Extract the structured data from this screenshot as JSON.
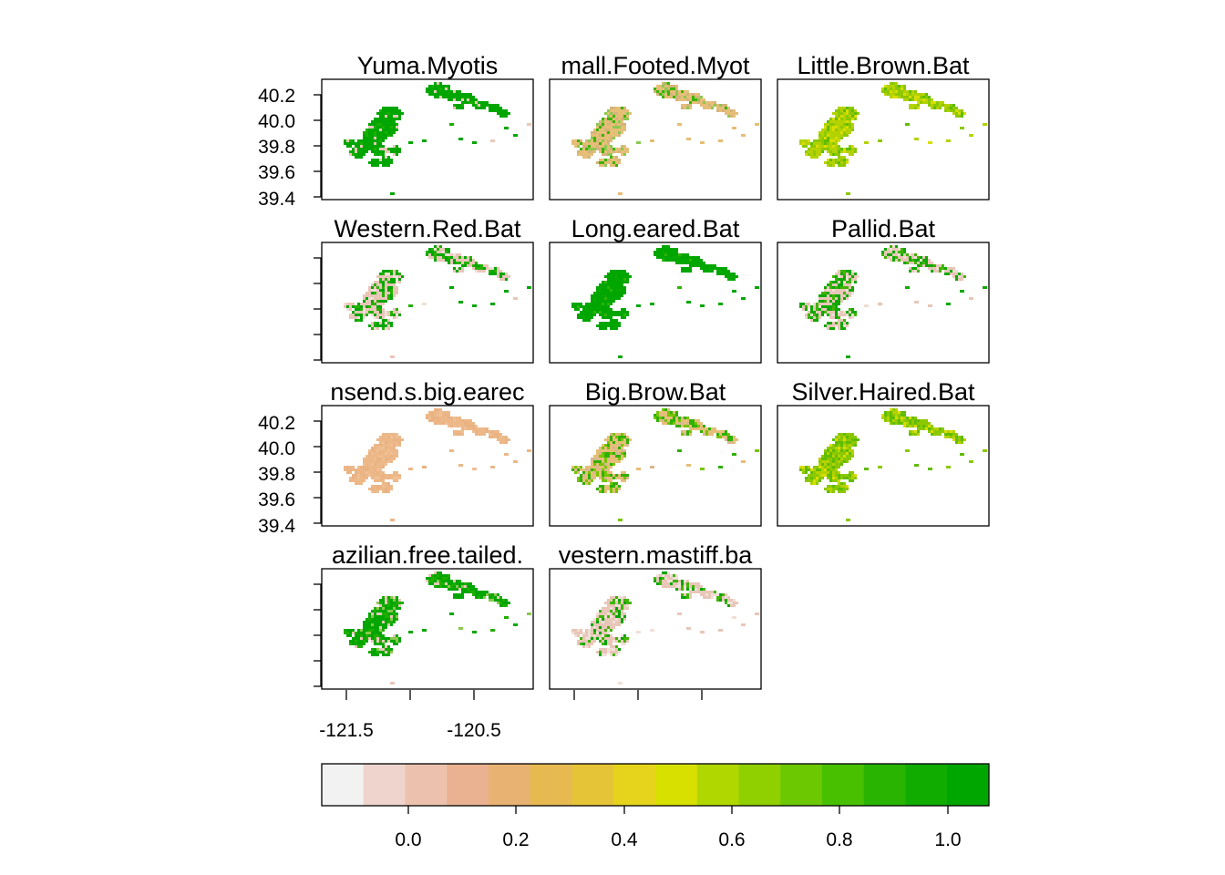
{
  "panels": [
    {
      "title": "Yuma.Myotis",
      "palette": [
        "#00a600",
        "#1aaf00",
        "#e8c8b8"
      ],
      "mix": [
        0.82,
        0.1,
        0.08
      ]
    },
    {
      "title": "mall.Footed.Myot",
      "palette": [
        "#e6be78",
        "#d4b47a",
        "#8cc850",
        "#3cb400"
      ],
      "mix": [
        0.55,
        0.2,
        0.15,
        0.1
      ]
    },
    {
      "title": "Little.Brown.Bat",
      "palette": [
        "#b4d200",
        "#8cc800",
        "#d8de00",
        "#60bc00"
      ],
      "mix": [
        0.45,
        0.3,
        0.15,
        0.1
      ]
    },
    {
      "title": "Western.Red.Bat",
      "palette": [
        "#e8c6b8",
        "#00a600",
        "#28b000",
        "#f0e0d8"
      ],
      "mix": [
        0.45,
        0.3,
        0.15,
        0.1
      ]
    },
    {
      "title": "Long.eared.Bat",
      "palette": [
        "#00a600",
        "#0aa800",
        "#30b400"
      ],
      "mix": [
        0.85,
        0.1,
        0.05
      ]
    },
    {
      "title": "Pallid.Bat",
      "palette": [
        "#e8c6b8",
        "#10a800",
        "#40b400",
        "#f0ddd2"
      ],
      "mix": [
        0.45,
        0.3,
        0.15,
        0.1
      ]
    },
    {
      "title": "nsend.s.big.earec",
      "palette": [
        "#ecb888",
        "#eab283",
        "#f0bf93"
      ],
      "mix": [
        0.6,
        0.25,
        0.15
      ]
    },
    {
      "title": "Big.Brow.Bat",
      "palette": [
        "#e6be78",
        "#30b000",
        "#78c400",
        "#d8b890"
      ],
      "mix": [
        0.45,
        0.25,
        0.2,
        0.1
      ]
    },
    {
      "title": "Silver.Haired.Bat",
      "palette": [
        "#8cc800",
        "#60bc00",
        "#b4d200",
        "#d8de00"
      ],
      "mix": [
        0.4,
        0.3,
        0.2,
        0.1
      ]
    },
    {
      "title": "azilian.free.tailed.",
      "palette": [
        "#00a600",
        "#20ae00",
        "#8cc850",
        "#e8c8b8"
      ],
      "mix": [
        0.6,
        0.2,
        0.1,
        0.1
      ]
    },
    {
      "title": "vestern.mastiff.ba",
      "palette": [
        "#e8c6b8",
        "#f0e0d8",
        "#40b400",
        "#00a600"
      ],
      "mix": [
        0.55,
        0.2,
        0.15,
        0.1
      ]
    }
  ],
  "y_ticks": [
    "40.2",
    "40.0",
    "39.8",
    "39.6",
    "39.4"
  ],
  "x_ticks": [
    "-121.5",
    "-120.5"
  ],
  "legend": {
    "colors": [
      "#f2f2f2",
      "#eed4cc",
      "#ecc2ae",
      "#eab290",
      "#e8b272",
      "#e6ba50",
      "#e6c438",
      "#e6d41c",
      "#d8e000",
      "#b0d800",
      "#90d000",
      "#6cc800",
      "#48c000",
      "#28b400",
      "#10ac00",
      "#00a600"
    ],
    "ticks": [
      "0.0",
      "0.2",
      "0.4",
      "0.6",
      "0.8",
      "1.0"
    ]
  }
}
